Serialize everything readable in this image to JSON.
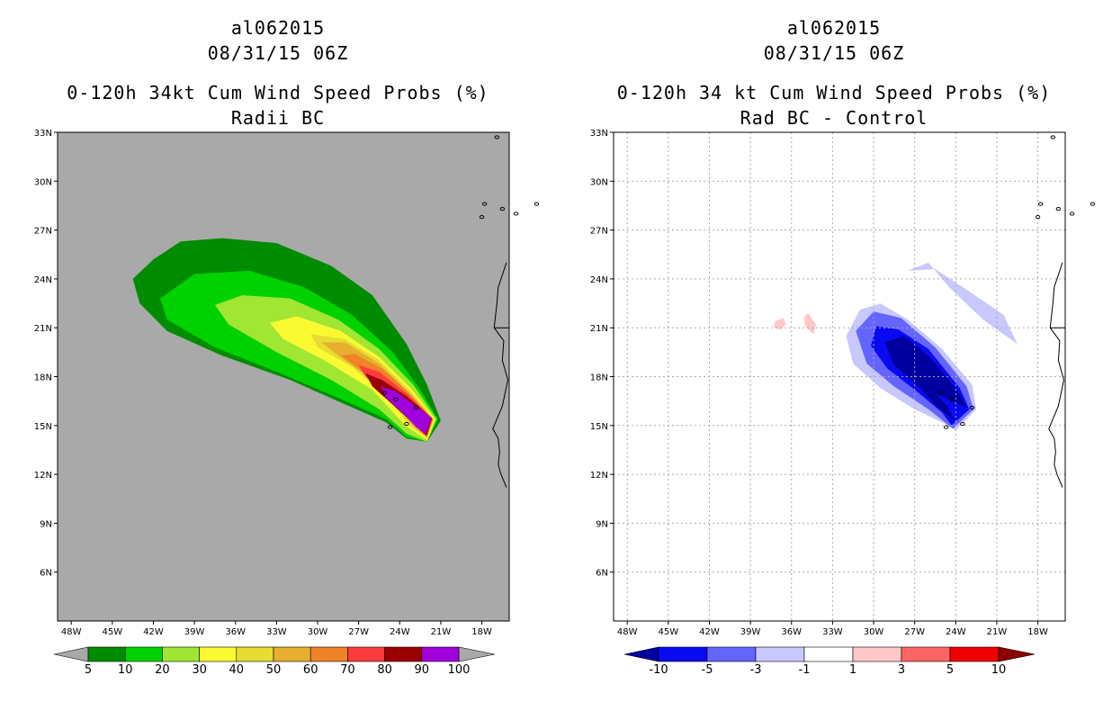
{
  "colors": {
    "background_left": "#a9a9a9",
    "left_levels": [
      "#008c00",
      "#00d200",
      "#a0e632",
      "#fafa32",
      "#e6dc32",
      "#e6af2d",
      "#f08228",
      "#fa3c3c",
      "#9b0000",
      "#a000dc"
    ],
    "right_levels": [
      "#0000a0",
      "#0a0af0",
      "#6464ff",
      "#c8c8ff",
      "#ffffff",
      "#ffc8c8",
      "#ff6464",
      "#f00000",
      "#8c0000"
    ]
  },
  "chart_data": [
    {
      "type": "heatmap",
      "storm_id": "al062015",
      "valid_time": "08/31/15 06Z",
      "title": "0-120h 34kt Cum Wind Speed Probs (%)",
      "subtitle": "Radii BC",
      "x_range_lon": [
        -49,
        -16
      ],
      "y_range_lat": [
        3,
        33
      ],
      "xticks": [
        "48W",
        "45W",
        "42W",
        "39W",
        "36W",
        "33W",
        "30W",
        "27W",
        "24W",
        "21W",
        "18W"
      ],
      "yticks": [
        "6N",
        "9N",
        "12N",
        "15N",
        "18N",
        "21N",
        "24N",
        "27N",
        "30N",
        "33N"
      ],
      "colorbar_labels": [
        "5",
        "10",
        "20",
        "30",
        "40",
        "50",
        "60",
        "70",
        "80",
        "90",
        "100"
      ],
      "contours": [
        {
          "level": 5,
          "polygon": [
            [
              -22,
              14
            ],
            [
              -21,
              15.3
            ],
            [
              -22,
              17.5
            ],
            [
              -23.5,
              20
            ],
            [
              -26,
              23
            ],
            [
              -29,
              24.8
            ],
            [
              -33,
              26.2
            ],
            [
              -37,
              26.5
            ],
            [
              -40,
              26.3
            ],
            [
              -42,
              25.2
            ],
            [
              -43.5,
              24
            ],
            [
              -43,
              22.5
            ],
            [
              -41,
              20.8
            ],
            [
              -37,
              19.3
            ],
            [
              -32,
              17.8
            ],
            [
              -28,
              16.3
            ],
            [
              -25,
              15.2
            ],
            [
              -23.5,
              14.2
            ]
          ]
        },
        {
          "level": 10,
          "polygon": [
            [
              -22,
              14
            ],
            [
              -21.2,
              15.4
            ],
            [
              -22.5,
              17.2
            ],
            [
              -24.5,
              19.5
            ],
            [
              -27.5,
              21.8
            ],
            [
              -31,
              23.5
            ],
            [
              -35,
              24.5
            ],
            [
              -39,
              24.3
            ],
            [
              -41.5,
              22.8
            ],
            [
              -41,
              21.5
            ],
            [
              -37.5,
              19.8
            ],
            [
              -33,
              18.3
            ],
            [
              -28.5,
              16.7
            ],
            [
              -25,
              15.4
            ],
            [
              -23.5,
              14.3
            ]
          ]
        },
        {
          "level": 20,
          "polygon": [
            [
              -22,
              14
            ],
            [
              -21.3,
              15.4
            ],
            [
              -23,
              17.5
            ],
            [
              -25.5,
              19.7
            ],
            [
              -28.5,
              21.5
            ],
            [
              -32,
              22.8
            ],
            [
              -35.5,
              23
            ],
            [
              -37.5,
              22.4
            ],
            [
              -36.5,
              21.2
            ],
            [
              -33,
              19.5
            ],
            [
              -29,
              17.8
            ],
            [
              -25.5,
              16
            ],
            [
              -23.5,
              14.5
            ]
          ]
        },
        {
          "level": 30,
          "polygon": [
            [
              -22,
              14.1
            ],
            [
              -21.4,
              15.4
            ],
            [
              -23.2,
              17.3
            ],
            [
              -25.5,
              19.2
            ],
            [
              -28.3,
              20.8
            ],
            [
              -31.5,
              21.7
            ],
            [
              -33.5,
              21.3
            ],
            [
              -32.5,
              20.3
            ],
            [
              -29.5,
              19
            ],
            [
              -26,
              17.2
            ],
            [
              -23.6,
              15
            ]
          ]
        },
        {
          "level": 40,
          "polygon": [
            [
              -22,
              14.2
            ],
            [
              -21.5,
              15.4
            ],
            [
              -23.3,
              17.2
            ],
            [
              -25.5,
              19
            ],
            [
              -28,
              20.3
            ],
            [
              -30.5,
              20.6
            ],
            [
              -30,
              19.8
            ],
            [
              -27.5,
              18.6
            ],
            [
              -25,
              16.8
            ],
            [
              -23.3,
              15
            ]
          ]
        },
        {
          "level": 50,
          "polygon": [
            [
              -22,
              14.25
            ],
            [
              -21.55,
              15.4
            ],
            [
              -23.3,
              17
            ],
            [
              -25.5,
              18.8
            ],
            [
              -28,
              20.1
            ],
            [
              -29.7,
              20.1
            ],
            [
              -28.5,
              19.3
            ],
            [
              -26.5,
              18.1
            ],
            [
              -24.5,
              16.5
            ],
            [
              -23.1,
              15
            ]
          ]
        },
        {
          "level": 60,
          "polygon": [
            [
              -22,
              14.3
            ],
            [
              -21.6,
              15.4
            ],
            [
              -23.3,
              17
            ],
            [
              -25.3,
              18.5
            ],
            [
              -27.3,
              19.4
            ],
            [
              -28.3,
              19.3
            ],
            [
              -27,
              18.5
            ],
            [
              -25.2,
              17.2
            ],
            [
              -23.6,
              15.8
            ],
            [
              -22.8,
              14.9
            ]
          ]
        },
        {
          "level": 70,
          "polygon": [
            [
              -22,
              14.35
            ],
            [
              -21.6,
              15.4
            ],
            [
              -23.4,
              16.9
            ],
            [
              -25.5,
              18.3
            ],
            [
              -27,
              18.7
            ],
            [
              -26.5,
              18
            ],
            [
              -24.8,
              16.8
            ],
            [
              -23.3,
              15.5
            ],
            [
              -22.6,
              14.8
            ]
          ]
        },
        {
          "level": 80,
          "polygon": [
            [
              -22.05,
              14.4
            ],
            [
              -21.65,
              15.45
            ],
            [
              -23.5,
              16.8
            ],
            [
              -25.3,
              17.8
            ],
            [
              -26.5,
              18.2
            ],
            [
              -26,
              17.4
            ],
            [
              -24.4,
              16.2
            ],
            [
              -23.1,
              15.2
            ],
            [
              -22.5,
              14.7
            ]
          ]
        },
        {
          "level": 90,
          "polygon": [
            [
              -22.1,
              14.5
            ],
            [
              -21.7,
              15.5
            ],
            [
              -23,
              16.3
            ],
            [
              -24.3,
              17.1
            ],
            [
              -25.4,
              17.4
            ],
            [
              -25,
              16.7
            ],
            [
              -23.8,
              15.8
            ],
            [
              -22.8,
              14.9
            ]
          ]
        }
      ]
    },
    {
      "type": "heatmap",
      "storm_id": "al062015",
      "valid_time": "08/31/15 06Z",
      "title": "0-120h 34 kt Cum Wind Speed Probs (%)",
      "subtitle": "Rad BC - Control",
      "x_range_lon": [
        -49,
        -16
      ],
      "y_range_lat": [
        3,
        33
      ],
      "xticks": [
        "48W",
        "45W",
        "42W",
        "39W",
        "36W",
        "33W",
        "30W",
        "27W",
        "24W",
        "21W",
        "18W"
      ],
      "yticks": [
        "6N",
        "9N",
        "12N",
        "15N",
        "18N",
        "21N",
        "24N",
        "27N",
        "30N",
        "33N"
      ],
      "colorbar_labels": [
        "-10",
        "-5",
        "-3",
        "-1",
        "1",
        "3",
        "5",
        "10"
      ],
      "contours": [
        {
          "level": -1,
          "polygon": [
            [
              -22.5,
              16
            ],
            [
              -22.8,
              17.5
            ],
            [
              -25,
              19.7
            ],
            [
              -27.5,
              21.5
            ],
            [
              -29.5,
              22.5
            ],
            [
              -31,
              22.1
            ],
            [
              -32,
              20.5
            ],
            [
              -31.5,
              18.8
            ],
            [
              -29.5,
              17.3
            ],
            [
              -27,
              16
            ],
            [
              -25,
              15.2
            ],
            [
              -24,
              14.7
            ]
          ]
        },
        {
          "level": -1,
          "polygon": [
            [
              -27.5,
              24.5
            ],
            [
              -26,
              25
            ],
            [
              -24.5,
              23.5
            ],
            [
              -22,
              21.5
            ],
            [
              -19.5,
              20
            ],
            [
              -20.5,
              21.8
            ],
            [
              -23.5,
              23.5
            ],
            [
              -25.5,
              24.6
            ]
          ]
        },
        {
          "level": -3,
          "polygon": [
            [
              -22.7,
              16
            ],
            [
              -23.2,
              17.4
            ],
            [
              -25.5,
              19.8
            ],
            [
              -28,
              21.6
            ],
            [
              -30,
              22
            ],
            [
              -31.3,
              20.8
            ],
            [
              -30.5,
              18.8
            ],
            [
              -28.5,
              17.4
            ],
            [
              -26,
              16
            ],
            [
              -24.2,
              14.8
            ]
          ]
        },
        {
          "level": -5,
          "polygon": [
            [
              -23,
              16
            ],
            [
              -23.7,
              17.3
            ],
            [
              -26,
              19.7
            ],
            [
              -28.2,
              20.9
            ],
            [
              -29.8,
              21.1
            ],
            [
              -30.2,
              19.9
            ],
            [
              -29,
              18.5
            ],
            [
              -27,
              17.2
            ],
            [
              -25,
              15.8
            ],
            [
              -24.3,
              15
            ]
          ]
        },
        {
          "level": -10,
          "polygon": [
            [
              -23.2,
              16.1
            ],
            [
              -24,
              17.3
            ],
            [
              -26,
              19.3
            ],
            [
              -27.8,
              20.5
            ],
            [
              -29.2,
              20.1
            ],
            [
              -28.5,
              18.7
            ],
            [
              -26.6,
              17.3
            ],
            [
              -25.3,
              16.1
            ],
            [
              -24.1,
              15.3
            ],
            [
              -24.6,
              16.2
            ],
            [
              -25.5,
              17
            ]
          ]
        },
        {
          "level": 1,
          "polygon": [
            [
              -37.2,
              21.4
            ],
            [
              -36.6,
              21.6
            ],
            [
              -36.4,
              21.2
            ],
            [
              -36.8,
              20.9
            ],
            [
              -37.3,
              21
            ]
          ]
        },
        {
          "level": 1,
          "polygon": [
            [
              -34.8,
              21.9
            ],
            [
              -34.2,
              21.2
            ],
            [
              -34.4,
              20.6
            ],
            [
              -35,
              21.1
            ],
            [
              -35.1,
              21.6
            ]
          ]
        }
      ]
    }
  ]
}
